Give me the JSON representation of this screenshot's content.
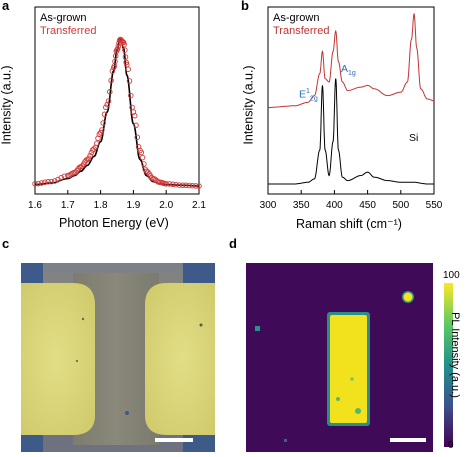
{
  "panels": {
    "a": {
      "letter": "a",
      "xlabel": "Photon Energy (eV)",
      "ylabel": "Intensity (a.u.)",
      "legend": [
        {
          "label": "As-grown",
          "color": "#000000"
        },
        {
          "label": "Transferred",
          "color": "#d23a3a"
        }
      ]
    },
    "b": {
      "letter": "b",
      "xlabel": "Raman shift (cm⁻¹)",
      "ylabel": "Intensity (a.u.)",
      "legend": [
        {
          "label": "As-grown",
          "color": "#000000"
        },
        {
          "label": "Transferred",
          "color": "#c03434"
        }
      ],
      "peak_labels": {
        "e2g_main": "E",
        "e2g_sup": "1",
        "e2g_sub": "2g",
        "a1g_main": "A",
        "a1g_sub": "1g",
        "si": "Si"
      }
    },
    "c": {
      "letter": "c"
    },
    "d": {
      "letter": "d",
      "colorbar_label": "PL Intensity (a.u.)",
      "colorbar_max": "100",
      "colorbar_min": "0"
    }
  },
  "colors": {
    "as_grown": "#000000",
    "transferred_pl": "#d23a3a",
    "transferred_raman": "#c03434",
    "peak_label": "#2d6cc0"
  },
  "chart_data": [
    {
      "type": "line",
      "panel": "a",
      "xlabel": "Photon Energy (eV)",
      "ylabel": "Intensity (a.u.)",
      "xlim": [
        1.6,
        2.1
      ],
      "xticks": [
        "1.6",
        "1.7",
        "1.8",
        "1.9",
        "2.0",
        "2.1"
      ],
      "yticks_shown": false,
      "legend_position": "top-left",
      "series": [
        {
          "name": "As-grown",
          "style": "solid line",
          "color": "#000000",
          "peak_x": 1.86,
          "x": [
            1.6,
            1.65,
            1.7,
            1.72,
            1.74,
            1.76,
            1.78,
            1.8,
            1.82,
            1.84,
            1.85,
            1.86,
            1.87,
            1.88,
            1.9,
            1.92,
            1.94,
            1.96,
            1.98,
            2.0,
            2.05,
            2.1
          ],
          "y": [
            0.01,
            0.02,
            0.05,
            0.07,
            0.1,
            0.14,
            0.2,
            0.3,
            0.5,
            0.78,
            0.92,
            1.0,
            0.93,
            0.75,
            0.42,
            0.18,
            0.07,
            0.03,
            0.015,
            0.01,
            0.005,
            0.0
          ]
        },
        {
          "name": "Transferred",
          "style": "open circles",
          "color": "#d23a3a",
          "peak_x": 1.865,
          "x": [
            1.6,
            1.65,
            1.7,
            1.72,
            1.74,
            1.76,
            1.78,
            1.8,
            1.82,
            1.84,
            1.85,
            1.86,
            1.87,
            1.88,
            1.9,
            1.92,
            1.94,
            1.96,
            1.98,
            2.0,
            2.05,
            2.1
          ],
          "y": [
            0.015,
            0.03,
            0.07,
            0.09,
            0.13,
            0.18,
            0.25,
            0.36,
            0.55,
            0.8,
            0.92,
            0.99,
            0.97,
            0.82,
            0.5,
            0.24,
            0.1,
            0.05,
            0.025,
            0.015,
            0.005,
            0.0
          ]
        }
      ]
    },
    {
      "type": "line",
      "panel": "b",
      "xlabel": "Raman shift (cm⁻¹)",
      "ylabel": "Intensity (a.u.)",
      "xlim": [
        300,
        550
      ],
      "xticks": [
        "300",
        "350",
        "400",
        "450",
        "500",
        "550"
      ],
      "yticks_shown": false,
      "legend_position": "top-left",
      "annotations": [
        {
          "text": "E¹₂g",
          "x": 383
        },
        {
          "text": "A₁g",
          "x": 403
        },
        {
          "text": "Si",
          "x": 520
        }
      ],
      "series": [
        {
          "name": "As-grown",
          "color": "#000000",
          "x": [
            300,
            340,
            360,
            370,
            378,
            382,
            386,
            392,
            398,
            402,
            406,
            412,
            420,
            440,
            450,
            460,
            480,
            500,
            520,
            540,
            550
          ],
          "y": [
            0.0,
            0.0,
            0.01,
            0.03,
            0.2,
            0.58,
            0.2,
            0.05,
            0.25,
            0.62,
            0.2,
            0.04,
            0.02,
            0.05,
            0.07,
            0.04,
            0.02,
            0.01,
            0.01,
            0.0,
            0.0
          ]
        },
        {
          "name": "Transferred",
          "color": "#c03434",
          "x": [
            300,
            340,
            360,
            370,
            378,
            382,
            386,
            392,
            398,
            402,
            406,
            412,
            420,
            440,
            450,
            460,
            480,
            500,
            510,
            516,
            520,
            524,
            530,
            540,
            550
          ],
          "y": [
            0.45,
            0.46,
            0.48,
            0.52,
            0.65,
            0.78,
            0.62,
            0.6,
            0.78,
            0.9,
            0.72,
            0.6,
            0.55,
            0.57,
            0.58,
            0.56,
            0.52,
            0.54,
            0.6,
            0.85,
            1.0,
            0.8,
            0.56,
            0.5,
            0.49
          ]
        }
      ]
    },
    {
      "type": "heatmap",
      "panel": "d",
      "colorbar_label": "PL Intensity (a.u.)",
      "colorbar_range": [
        0,
        100
      ],
      "colormap": "viridis",
      "features": [
        {
          "shape": "rectangle",
          "intensity": 95
        },
        {
          "shape": "dot",
          "intensity": 90
        },
        {
          "shape": "dot",
          "intensity": 45
        }
      ]
    }
  ]
}
